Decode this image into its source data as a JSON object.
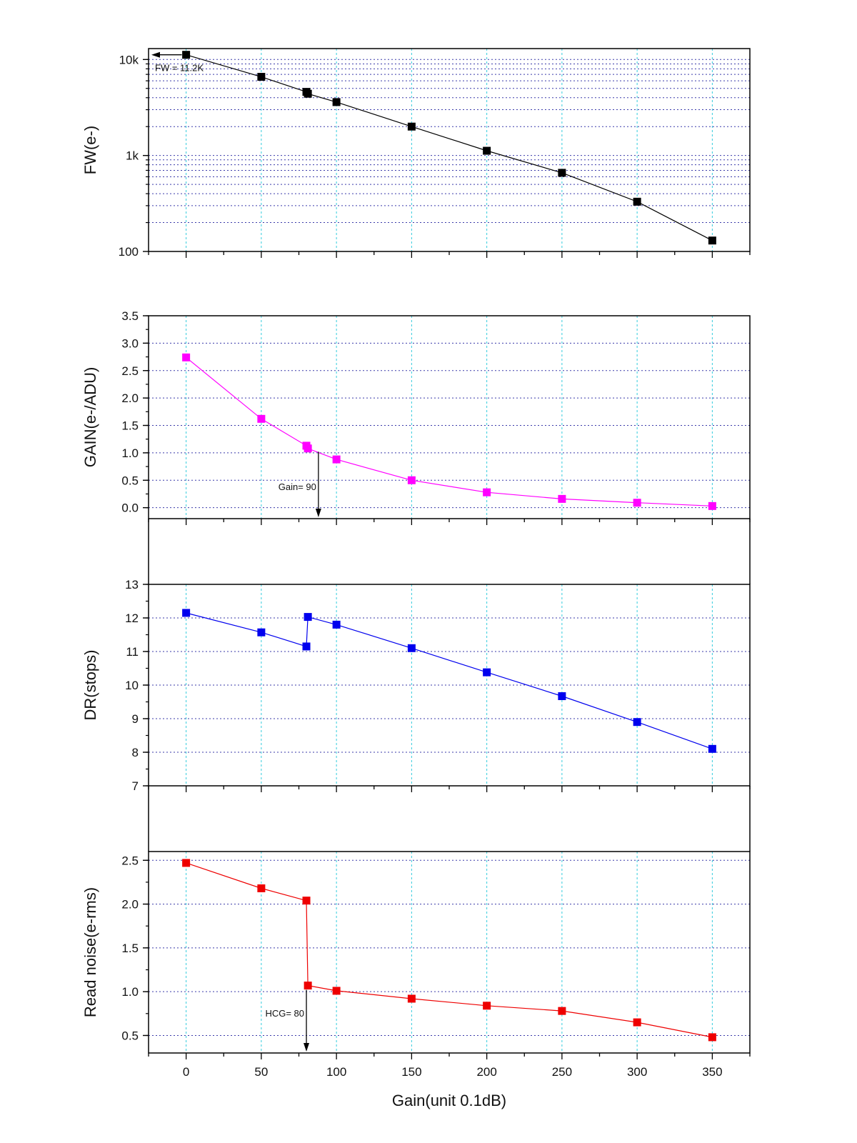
{
  "chart_data": [
    {
      "type": "line",
      "id": "fw",
      "ylabel": "FW(e-)",
      "yscale": "log",
      "ylim": [
        100,
        13000
      ],
      "y_ticks": [
        {
          "v": 100,
          "label": "100"
        },
        {
          "v": 1000,
          "label": "1k"
        },
        {
          "v": 10000,
          "label": "10k"
        }
      ],
      "color": "#000000",
      "x": [
        0,
        50,
        80,
        81,
        100,
        150,
        200,
        250,
        300,
        350
      ],
      "values": [
        11200,
        6600,
        4600,
        4400,
        3600,
        2000,
        1120,
        660,
        330,
        130
      ],
      "annotation": {
        "text": "FW = 11.2K",
        "x": 0,
        "y": 11200,
        "arrow": "left"
      }
    },
    {
      "type": "line",
      "id": "gain",
      "ylabel": "GAIN(e-/ADU)",
      "yscale": "linear",
      "ylim": [
        -0.2,
        3.5
      ],
      "y_ticks": [
        {
          "v": 0.0,
          "label": "0.0"
        },
        {
          "v": 0.5,
          "label": "0.5"
        },
        {
          "v": 1.0,
          "label": "1.0"
        },
        {
          "v": 1.5,
          "label": "1.5"
        },
        {
          "v": 2.0,
          "label": "2.0"
        },
        {
          "v": 2.5,
          "label": "2.5"
        },
        {
          "v": 3.0,
          "label": "3.0"
        },
        {
          "v": 3.5,
          "label": "3.5"
        }
      ],
      "color": "#ff00ff",
      "x": [
        0,
        50,
        80,
        81,
        100,
        150,
        200,
        250,
        300,
        350
      ],
      "values": [
        2.74,
        1.62,
        1.13,
        1.08,
        0.88,
        0.5,
        0.28,
        0.16,
        0.09,
        0.03
      ],
      "annotation": {
        "text": "Gain= 90",
        "x": 88,
        "arrow": "down"
      }
    },
    {
      "type": "line",
      "id": "dr",
      "ylabel": "DR(stops)",
      "yscale": "linear",
      "ylim": [
        7,
        13
      ],
      "y_ticks": [
        {
          "v": 7,
          "label": "7"
        },
        {
          "v": 8,
          "label": "8"
        },
        {
          "v": 9,
          "label": "9"
        },
        {
          "v": 10,
          "label": "10"
        },
        {
          "v": 11,
          "label": "11"
        },
        {
          "v": 12,
          "label": "12"
        },
        {
          "v": 13,
          "label": "13"
        }
      ],
      "color": "#0000ee",
      "x": [
        0,
        50,
        80,
        81,
        100,
        150,
        200,
        250,
        300,
        350
      ],
      "values": [
        12.15,
        11.57,
        11.15,
        12.03,
        11.8,
        11.1,
        10.38,
        9.67,
        8.9,
        8.1
      ]
    },
    {
      "type": "line",
      "id": "noise",
      "ylabel": "Read noise(e-rms)",
      "yscale": "linear",
      "ylim": [
        0.3,
        2.6
      ],
      "y_ticks": [
        {
          "v": 0.5,
          "label": "0.5"
        },
        {
          "v": 1.0,
          "label": "1.0"
        },
        {
          "v": 1.5,
          "label": "1.5"
        },
        {
          "v": 2.0,
          "label": "2.0"
        },
        {
          "v": 2.5,
          "label": "2.5"
        }
      ],
      "color": "#ee0000",
      "x": [
        0,
        50,
        80,
        81,
        100,
        150,
        200,
        250,
        300,
        350
      ],
      "values": [
        2.47,
        2.18,
        2.04,
        1.07,
        1.01,
        0.92,
        0.84,
        0.78,
        0.65,
        0.48
      ],
      "annotation": {
        "text": "HCG= 80",
        "x": 80,
        "arrow": "down"
      }
    }
  ],
  "x_axis": {
    "label": "Gain(unit 0.1dB)",
    "xlim": [
      -25,
      375
    ],
    "ticks": [
      0,
      50,
      100,
      150,
      200,
      250,
      300,
      350
    ]
  },
  "colors": {
    "grid_h": "#3a3aaa",
    "grid_v": "#33ccdd",
    "axis": "#000000"
  }
}
